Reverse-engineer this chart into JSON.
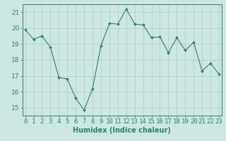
{
  "x": [
    0,
    1,
    2,
    3,
    4,
    5,
    6,
    7,
    8,
    9,
    10,
    11,
    12,
    13,
    14,
    15,
    16,
    17,
    18,
    19,
    20,
    21,
    22,
    23
  ],
  "y": [
    19.9,
    19.3,
    19.5,
    18.8,
    16.9,
    16.8,
    15.6,
    14.85,
    16.2,
    18.9,
    20.3,
    20.25,
    21.2,
    20.25,
    20.2,
    19.4,
    19.45,
    18.45,
    19.4,
    18.6,
    19.1,
    17.3,
    17.8,
    17.1
  ],
  "line_color": "#2e7d6e",
  "marker": "D",
  "marker_size": 2,
  "bg_color": "#cde8e3",
  "grid_color": "#b0c8c4",
  "xlabel": "Humidex (Indice chaleur)",
  "ylim": [
    14.5,
    21.5
  ],
  "yticks": [
    15,
    16,
    17,
    18,
    19,
    20,
    21
  ],
  "xticks": [
    0,
    1,
    2,
    3,
    4,
    5,
    6,
    7,
    8,
    9,
    10,
    11,
    12,
    13,
    14,
    15,
    16,
    17,
    18,
    19,
    20,
    21,
    22,
    23
  ],
  "xlabel_fontsize": 7,
  "tick_fontsize": 6.5
}
